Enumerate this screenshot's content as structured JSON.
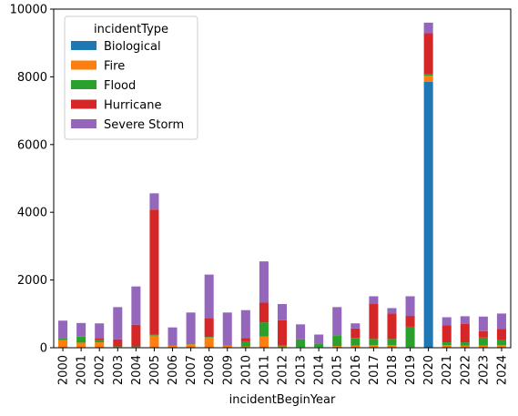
{
  "chart_data": {
    "type": "bar",
    "stacked": true,
    "xlabel": "incidentBeginYear",
    "ylabel": "",
    "ylim": [
      0,
      10000
    ],
    "yticks": [
      0,
      2000,
      4000,
      6000,
      8000,
      10000
    ],
    "grid": false,
    "legend": {
      "title": "incidentType",
      "placement": "top-left"
    },
    "categories": [
      "2000",
      "2001",
      "2002",
      "2003",
      "2004",
      "2005",
      "2006",
      "2007",
      "2008",
      "2009",
      "2010",
      "2011",
      "2012",
      "2013",
      "2014",
      "2015",
      "2016",
      "2017",
      "2018",
      "2019",
      "2020",
      "2021",
      "2022",
      "2023",
      "2024"
    ],
    "series": [
      {
        "name": "Biological",
        "color": "#1f77b4",
        "values": [
          0,
          0,
          0,
          0,
          0,
          0,
          0,
          0,
          0,
          0,
          0,
          0,
          0,
          0,
          0,
          0,
          0,
          0,
          0,
          0,
          7850,
          0,
          0,
          0,
          0
        ]
      },
      {
        "name": "Fire",
        "color": "#ff7f0e",
        "values": [
          230,
          150,
          160,
          20,
          20,
          360,
          60,
          100,
          300,
          60,
          40,
          330,
          40,
          20,
          20,
          50,
          60,
          80,
          80,
          20,
          180,
          80,
          60,
          60,
          80
        ]
      },
      {
        "name": "Flood",
        "color": "#2ca02c",
        "values": [
          40,
          180,
          70,
          20,
          20,
          20,
          20,
          20,
          20,
          20,
          150,
          420,
          40,
          230,
          110,
          320,
          230,
          180,
          180,
          600,
          60,
          80,
          100,
          240,
          140
        ]
      },
      {
        "name": "Hurricane",
        "color": "#d62728",
        "values": [
          0,
          0,
          50,
          210,
          640,
          3700,
          0,
          0,
          560,
          0,
          100,
          580,
          730,
          0,
          0,
          0,
          280,
          1030,
          750,
          320,
          1200,
          500,
          540,
          190,
          330
        ]
      },
      {
        "name": "Severe Storm",
        "color": "#9467bd",
        "values": [
          530,
          400,
          440,
          950,
          1130,
          480,
          520,
          920,
          1280,
          960,
          820,
          1220,
          480,
          440,
          260,
          830,
          150,
          230,
          160,
          580,
          310,
          240,
          230,
          430,
          460
        ]
      }
    ]
  }
}
